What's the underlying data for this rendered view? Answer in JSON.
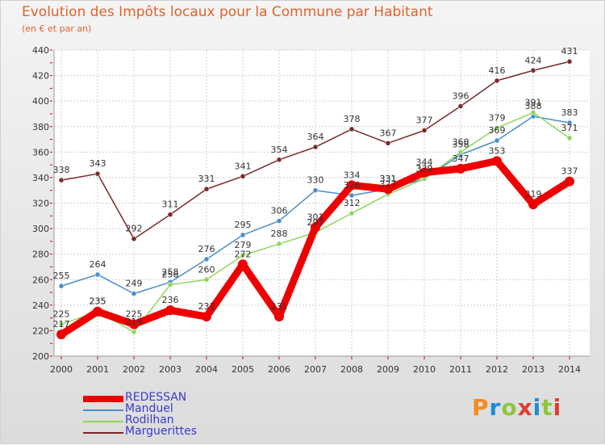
{
  "header": {
    "title": "Evolution des Impôts locaux pour la Commune par Habitant",
    "subtitle": "(en € et par an)"
  },
  "brand": {
    "text": "Proxiti",
    "colors": [
      "#f58a1f",
      "#1b8ed6",
      "#8cc63f",
      "#e03c31",
      "#1b8ed6",
      "#8cc63f",
      "#e03c31"
    ]
  },
  "chart_data": {
    "type": "line",
    "title": "Evolution des Impôts locaux pour la Commune par Habitant",
    "subtitle": "(en € et par an)",
    "xlabel": "",
    "ylabel": "",
    "x": [
      "2000",
      "2001",
      "2002",
      "2003",
      "2004",
      "2005",
      "2006",
      "2007",
      "2008",
      "2009",
      "2010",
      "2011",
      "2012",
      "2013",
      "2014"
    ],
    "ylim": [
      200,
      440
    ],
    "yticks": [
      200,
      220,
      240,
      260,
      280,
      300,
      320,
      340,
      360,
      380,
      400,
      420,
      440
    ],
    "grid": true,
    "legend": "bottom-left",
    "series": [
      {
        "name": "REDESSAN",
        "color": "#ee0000",
        "emphasis": true,
        "values": [
          217,
          235,
          225,
          236,
          231,
          272,
          231,
          301,
          334,
          331,
          344,
          347,
          353,
          319,
          337
        ],
        "labels": [
          "217",
          "235",
          "225",
          "236",
          "231",
          "272",
          "231",
          "301",
          "334",
          "331",
          "344",
          "347",
          "353",
          "319",
          "337"
        ]
      },
      {
        "name": "Manduel",
        "color": "#4a8ec9",
        "emphasis": false,
        "values": [
          255,
          264,
          249,
          258,
          276,
          295,
          306,
          330,
          326,
          331,
          339,
          358,
          369,
          388,
          383
        ],
        "labels": [
          "255",
          "264",
          "249",
          "258",
          "276",
          "295",
          "306",
          "330",
          "326",
          "331",
          "339",
          "358",
          "369",
          "388",
          "383"
        ]
      },
      {
        "name": "Rodilhan",
        "color": "#8fd65e",
        "emphasis": false,
        "values": [
          225,
          235,
          219,
          256,
          260,
          279,
          288,
          297,
          312,
          327,
          339,
          360,
          379,
          391,
          371
        ],
        "labels": [
          "225",
          "235",
          "219",
          "256",
          "260",
          "279",
          "288",
          "297",
          "312",
          "327",
          "339",
          "360",
          "379",
          "391",
          "371"
        ]
      },
      {
        "name": "Marguerittes",
        "color": "#7a2a2a",
        "emphasis": false,
        "values": [
          338,
          343,
          292,
          311,
          331,
          341,
          354,
          364,
          378,
          367,
          377,
          396,
          416,
          424,
          431
        ],
        "labels": [
          "338",
          "343",
          "292",
          "311",
          "331",
          "341",
          "354",
          "364",
          "378",
          "367",
          "377",
          "396",
          "416",
          "424",
          "431"
        ]
      }
    ]
  }
}
